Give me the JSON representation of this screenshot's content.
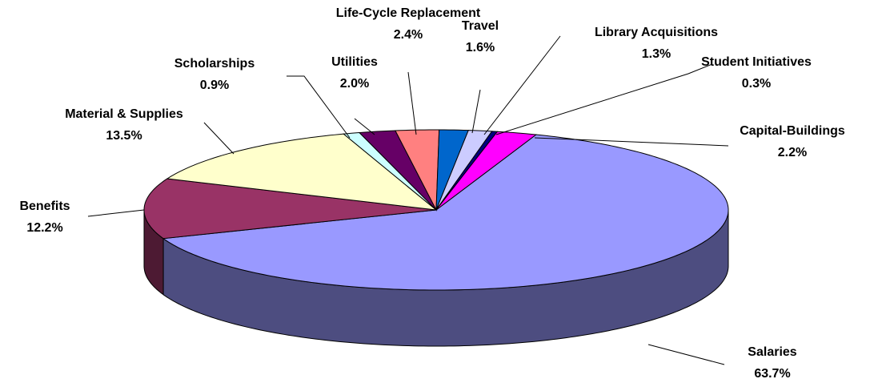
{
  "chart_data": {
    "type": "pie",
    "categories": [
      "Salaries",
      "Benefits",
      "Material & Supplies",
      "Scholarships",
      "Utilities",
      "Life-Cycle Replacement",
      "Travel",
      "Library Acquisitions",
      "Student Initiatives",
      "Capital-Buildings"
    ],
    "values": [
      63.7,
      12.2,
      13.5,
      0.9,
      2.0,
      2.4,
      1.6,
      1.3,
      0.3,
      2.2
    ],
    "value_labels": [
      "63.7%",
      "12.2%",
      "13.5%",
      "0.9%",
      "2.0%",
      "2.4%",
      "1.6%",
      "1.3%",
      "0.3%",
      "2.2%"
    ],
    "colors": [
      "#9999ff",
      "#993366",
      "#ffffcc",
      "#ccffff",
      "#660066",
      "#ff8080",
      "#0066cc",
      "#ccccff",
      "#000080",
      "#ff00ff"
    ]
  }
}
